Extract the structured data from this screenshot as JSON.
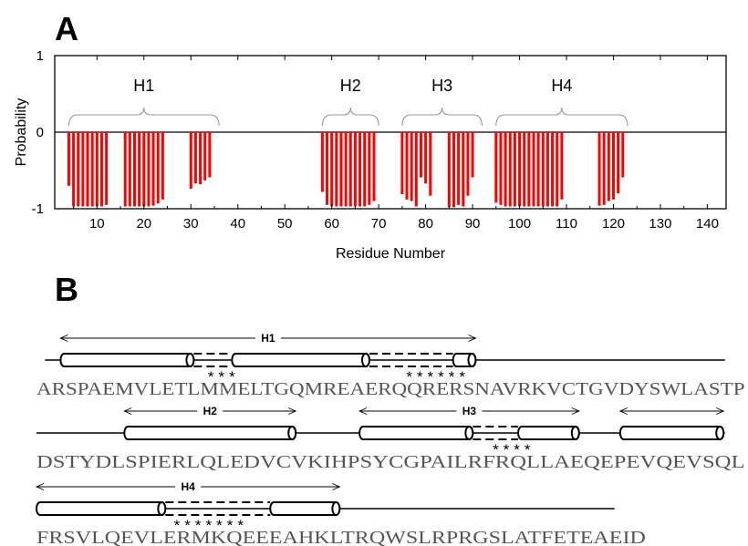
{
  "panel_a": {
    "letter": "A"
  },
  "panel_b": {
    "letter": "B"
  },
  "chart_data": {
    "type": "bar",
    "xlabel": "Residue Number",
    "ylabel": "Probability",
    "xlim": [
      1,
      144
    ],
    "ylim": [
      -1,
      1
    ],
    "x_ticks": [
      10,
      20,
      30,
      40,
      50,
      60,
      70,
      80,
      90,
      100,
      110,
      120,
      130,
      140
    ],
    "y_ticks": [
      1,
      0,
      -1
    ],
    "bar_color": "#ff0000",
    "x": [
      4,
      5,
      6,
      7,
      8,
      9,
      10,
      11,
      12,
      16,
      17,
      18,
      19,
      20,
      21,
      22,
      23,
      24,
      30,
      31,
      32,
      33,
      34,
      58,
      59,
      60,
      61,
      62,
      63,
      64,
      65,
      66,
      67,
      68,
      69,
      75,
      76,
      77,
      78,
      79,
      80,
      81,
      85,
      86,
      87,
      88,
      89,
      90,
      95,
      96,
      97,
      98,
      99,
      100,
      101,
      102,
      103,
      104,
      105,
      106,
      107,
      108,
      109,
      117,
      118,
      119,
      120,
      121,
      122
    ],
    "values": [
      -0.7,
      -0.97,
      -0.97,
      -0.97,
      -0.97,
      -0.97,
      -0.97,
      -0.97,
      -0.95,
      -0.97,
      -0.97,
      -0.97,
      -0.97,
      -0.97,
      -0.97,
      -0.96,
      -0.93,
      -0.88,
      -0.74,
      -0.67,
      -0.68,
      -0.63,
      -0.59,
      -0.78,
      -0.95,
      -0.97,
      -0.97,
      -0.97,
      -0.97,
      -0.97,
      -0.97,
      -0.97,
      -0.97,
      -0.95,
      -0.9,
      -0.81,
      -0.88,
      -0.9,
      -0.97,
      -0.59,
      -0.67,
      -0.83,
      -0.98,
      -0.98,
      -0.95,
      -0.97,
      -0.83,
      -0.59,
      -0.92,
      -0.95,
      -0.97,
      -0.97,
      -0.97,
      -0.97,
      -0.97,
      -0.97,
      -0.97,
      -0.97,
      -0.97,
      -0.97,
      -0.97,
      -0.97,
      -0.88,
      -0.96,
      -0.95,
      -0.9,
      -0.88,
      -0.8,
      -0.59
    ],
    "helices": [
      {
        "label": "H1",
        "start": 4,
        "end": 36
      },
      {
        "label": "H2",
        "start": 58,
        "end": 70
      },
      {
        "label": "H3",
        "start": 75,
        "end": 92
      },
      {
        "label": "H4",
        "start": 95,
        "end": 123
      }
    ]
  },
  "sequence_rows": [
    {
      "text": "ARSPAEMVLETLMMELTGQMREAERQQRERSNAVRKVCTGVDYSWLASTP",
      "stars": [
        {
          "col": 12.1,
          "text": "***"
        },
        {
          "col": 26.1,
          "text": "******"
        }
      ],
      "helix_arrows": [
        {
          "label": "H1",
          "from": 1.7,
          "to": 31.0
        }
      ],
      "cylinders": [
        {
          "from": 1.7,
          "to": 11.1
        },
        {
          "from": 13.8,
          "to": 23.5
        },
        {
          "from": 29.4,
          "to": 31.0
        }
      ],
      "dashed": [
        {
          "from": 11.1,
          "to": 13.8
        },
        {
          "from": 23.5,
          "to": 29.4
        }
      ],
      "line": {
        "from": 0.6,
        "to": 48.6
      }
    },
    {
      "text": "DSTYDLSPIERLQLEDVCVKIHPSYCGPAILRFRQLLAEQEPEVQEVSQL",
      "stars": [
        {
          "col": 32.2,
          "text": "****"
        }
      ],
      "helix_arrows": [
        {
          "label": "H2",
          "from": 6.2,
          "to": 18.3
        },
        {
          "label": "H3",
          "from": 22.8,
          "to": 38.3
        },
        {
          "label": "",
          "from": 41.2,
          "to": 48.5
        }
      ],
      "cylinders": [
        {
          "from": 6.2,
          "to": 18.3
        },
        {
          "from": 22.8,
          "to": 30.8
        },
        {
          "from": 34.0,
          "to": 38.3
        },
        {
          "from": 41.2,
          "to": 48.5
        }
      ],
      "dashed": [
        {
          "from": 30.8,
          "to": 34.0
        }
      ],
      "line": {
        "from": 0.0,
        "to": 48.6
      }
    },
    {
      "text": "FRSVLQEVLERMKQEEEAHKLTRQWSLRPRGSLATFETEAEID",
      "stars": [
        {
          "col": 9.7,
          "text": "*******"
        }
      ],
      "helix_arrows": [
        {
          "label": "H4",
          "from": 0.0,
          "to": 21.4
        }
      ],
      "cylinders": [
        {
          "from": 0.0,
          "to": 9.1
        },
        {
          "from": 16.5,
          "to": 21.4
        }
      ],
      "dashed": [
        {
          "from": 9.1,
          "to": 16.5
        }
      ],
      "line": {
        "from": 0.0,
        "to": 40.8
      }
    }
  ]
}
